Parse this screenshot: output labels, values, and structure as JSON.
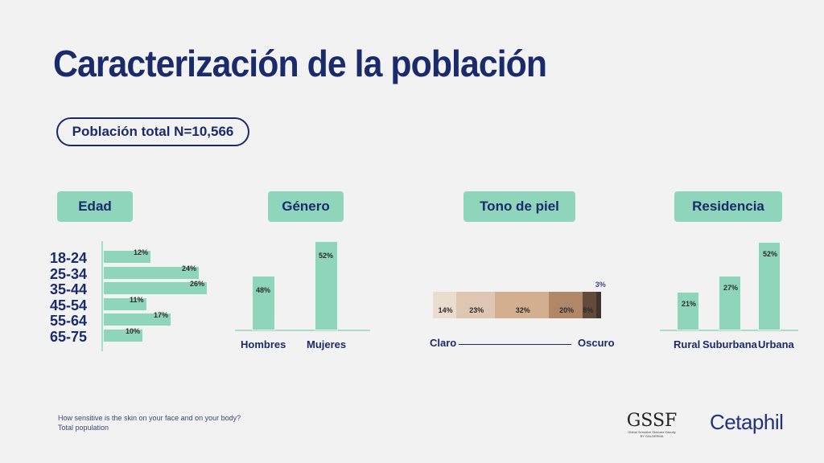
{
  "title": "Caracterización de la población",
  "population": "Población total N=10,566",
  "footnote": {
    "line1": "How sensitive is the skin on your face and on your body?",
    "line2": "Total population"
  },
  "logos": {
    "gssf": "GSSF",
    "gssf_sub1": "Global Sensitive Skincare Faculty",
    "gssf_sub2": "BY GALDERMA",
    "cetaphil": "Cetaphil"
  },
  "colors": {
    "bar": "#8fd5bc",
    "navy": "#1b2a6b"
  },
  "chart_data": [
    {
      "type": "bar",
      "orientation": "horizontal",
      "title": "Edad",
      "categories": [
        "18-24",
        "25-34",
        "35-44",
        "45-54",
        "55-64",
        "65-75"
      ],
      "values": [
        12,
        24,
        26,
        11,
        17,
        10
      ],
      "labels": [
        "12%",
        "24%",
        "26%",
        "11%",
        "17%",
        "10%"
      ]
    },
    {
      "type": "bar",
      "title": "Género",
      "categories": [
        "Hombres",
        "Mujeres"
      ],
      "values": [
        48,
        52
      ],
      "labels": [
        "48%",
        "52%"
      ]
    },
    {
      "type": "bar",
      "stacked": true,
      "title": "Tono de piel",
      "xlabel_left": "Claro",
      "xlabel_right": "Oscuro",
      "values": [
        14,
        23,
        32,
        20,
        8,
        3
      ],
      "labels": [
        "14%",
        "23%",
        "32%",
        "20%",
        "8%",
        "3%"
      ],
      "colors": [
        "#e9ddd0",
        "#dec6b2",
        "#d3ae8f",
        "#b08868",
        "#634a3b",
        "#3f3432"
      ]
    },
    {
      "type": "bar",
      "title": "Residencia",
      "categories": [
        "Rural",
        "Suburbana",
        "Urbana"
      ],
      "values": [
        21,
        27,
        52
      ],
      "labels": [
        "21%",
        "27%",
        "52%"
      ]
    }
  ]
}
